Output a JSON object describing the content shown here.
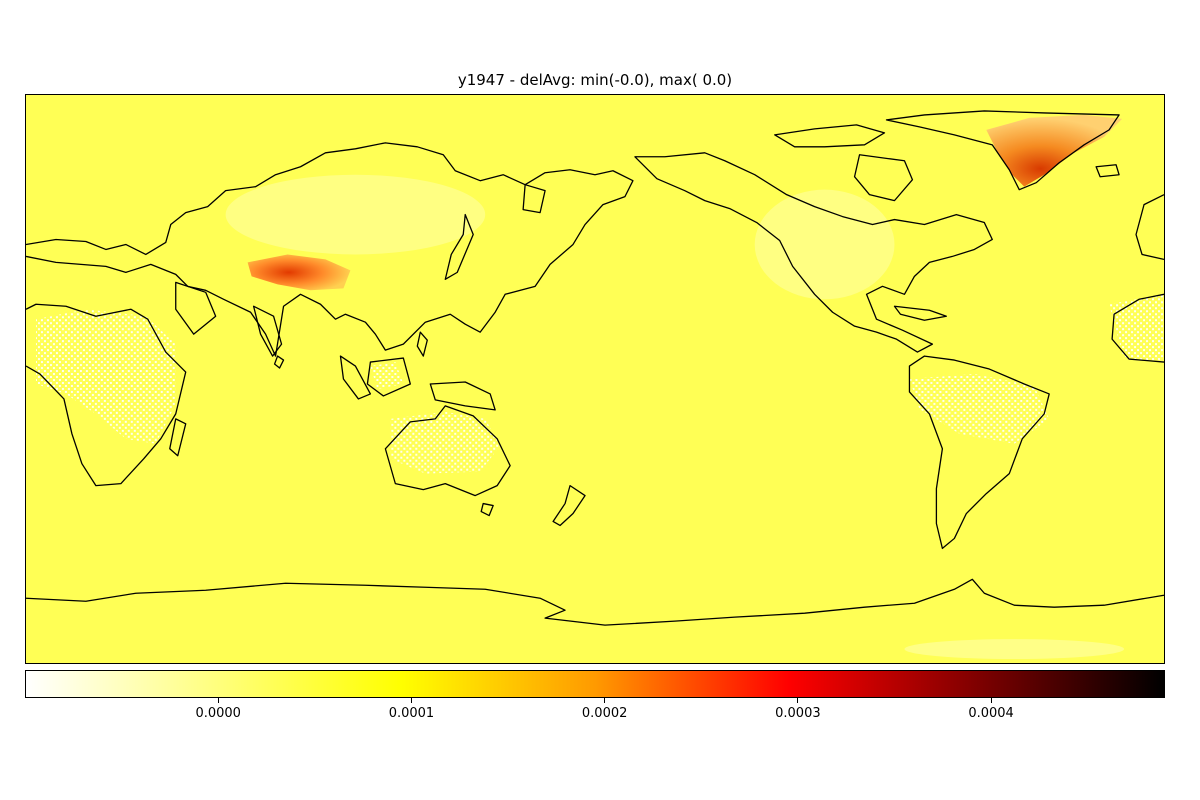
{
  "map": {
    "title": "y1947 - delAvg: min(-0.0), max( 0.0)",
    "projection": "equirectangular, centered on 180° longitude",
    "background_color": "#ffff55",
    "coastline_color": "#000000",
    "hotspots": [
      {
        "name": "Greenland ice sheet",
        "level": "highest",
        "color": "#e05000"
      },
      {
        "name": "Tibetan Plateau",
        "level": "high",
        "color": "#e23a00"
      }
    ],
    "sparse_regions": [
      "central Africa",
      "Australian interior",
      "Amazon basin",
      "Borneo"
    ]
  },
  "colorbar": {
    "colormap": "hot_r",
    "range": [
      -0.0001,
      0.00049
    ],
    "ticks": [
      {
        "value": 0.0,
        "label": "0.0000"
      },
      {
        "value": 0.0001,
        "label": "0.0001"
      },
      {
        "value": 0.0002,
        "label": "0.0002"
      },
      {
        "value": 0.0003,
        "label": "0.0003"
      },
      {
        "value": 0.0004,
        "label": "0.0004"
      }
    ],
    "stops": [
      {
        "offset": 0.0,
        "color": "#ffffff"
      },
      {
        "offset": 0.33,
        "color": "#ffff00"
      },
      {
        "offset": 0.5,
        "color": "#ff9a00"
      },
      {
        "offset": 0.67,
        "color": "#ff0000"
      },
      {
        "offset": 1.0,
        "color": "#000000"
      }
    ]
  }
}
